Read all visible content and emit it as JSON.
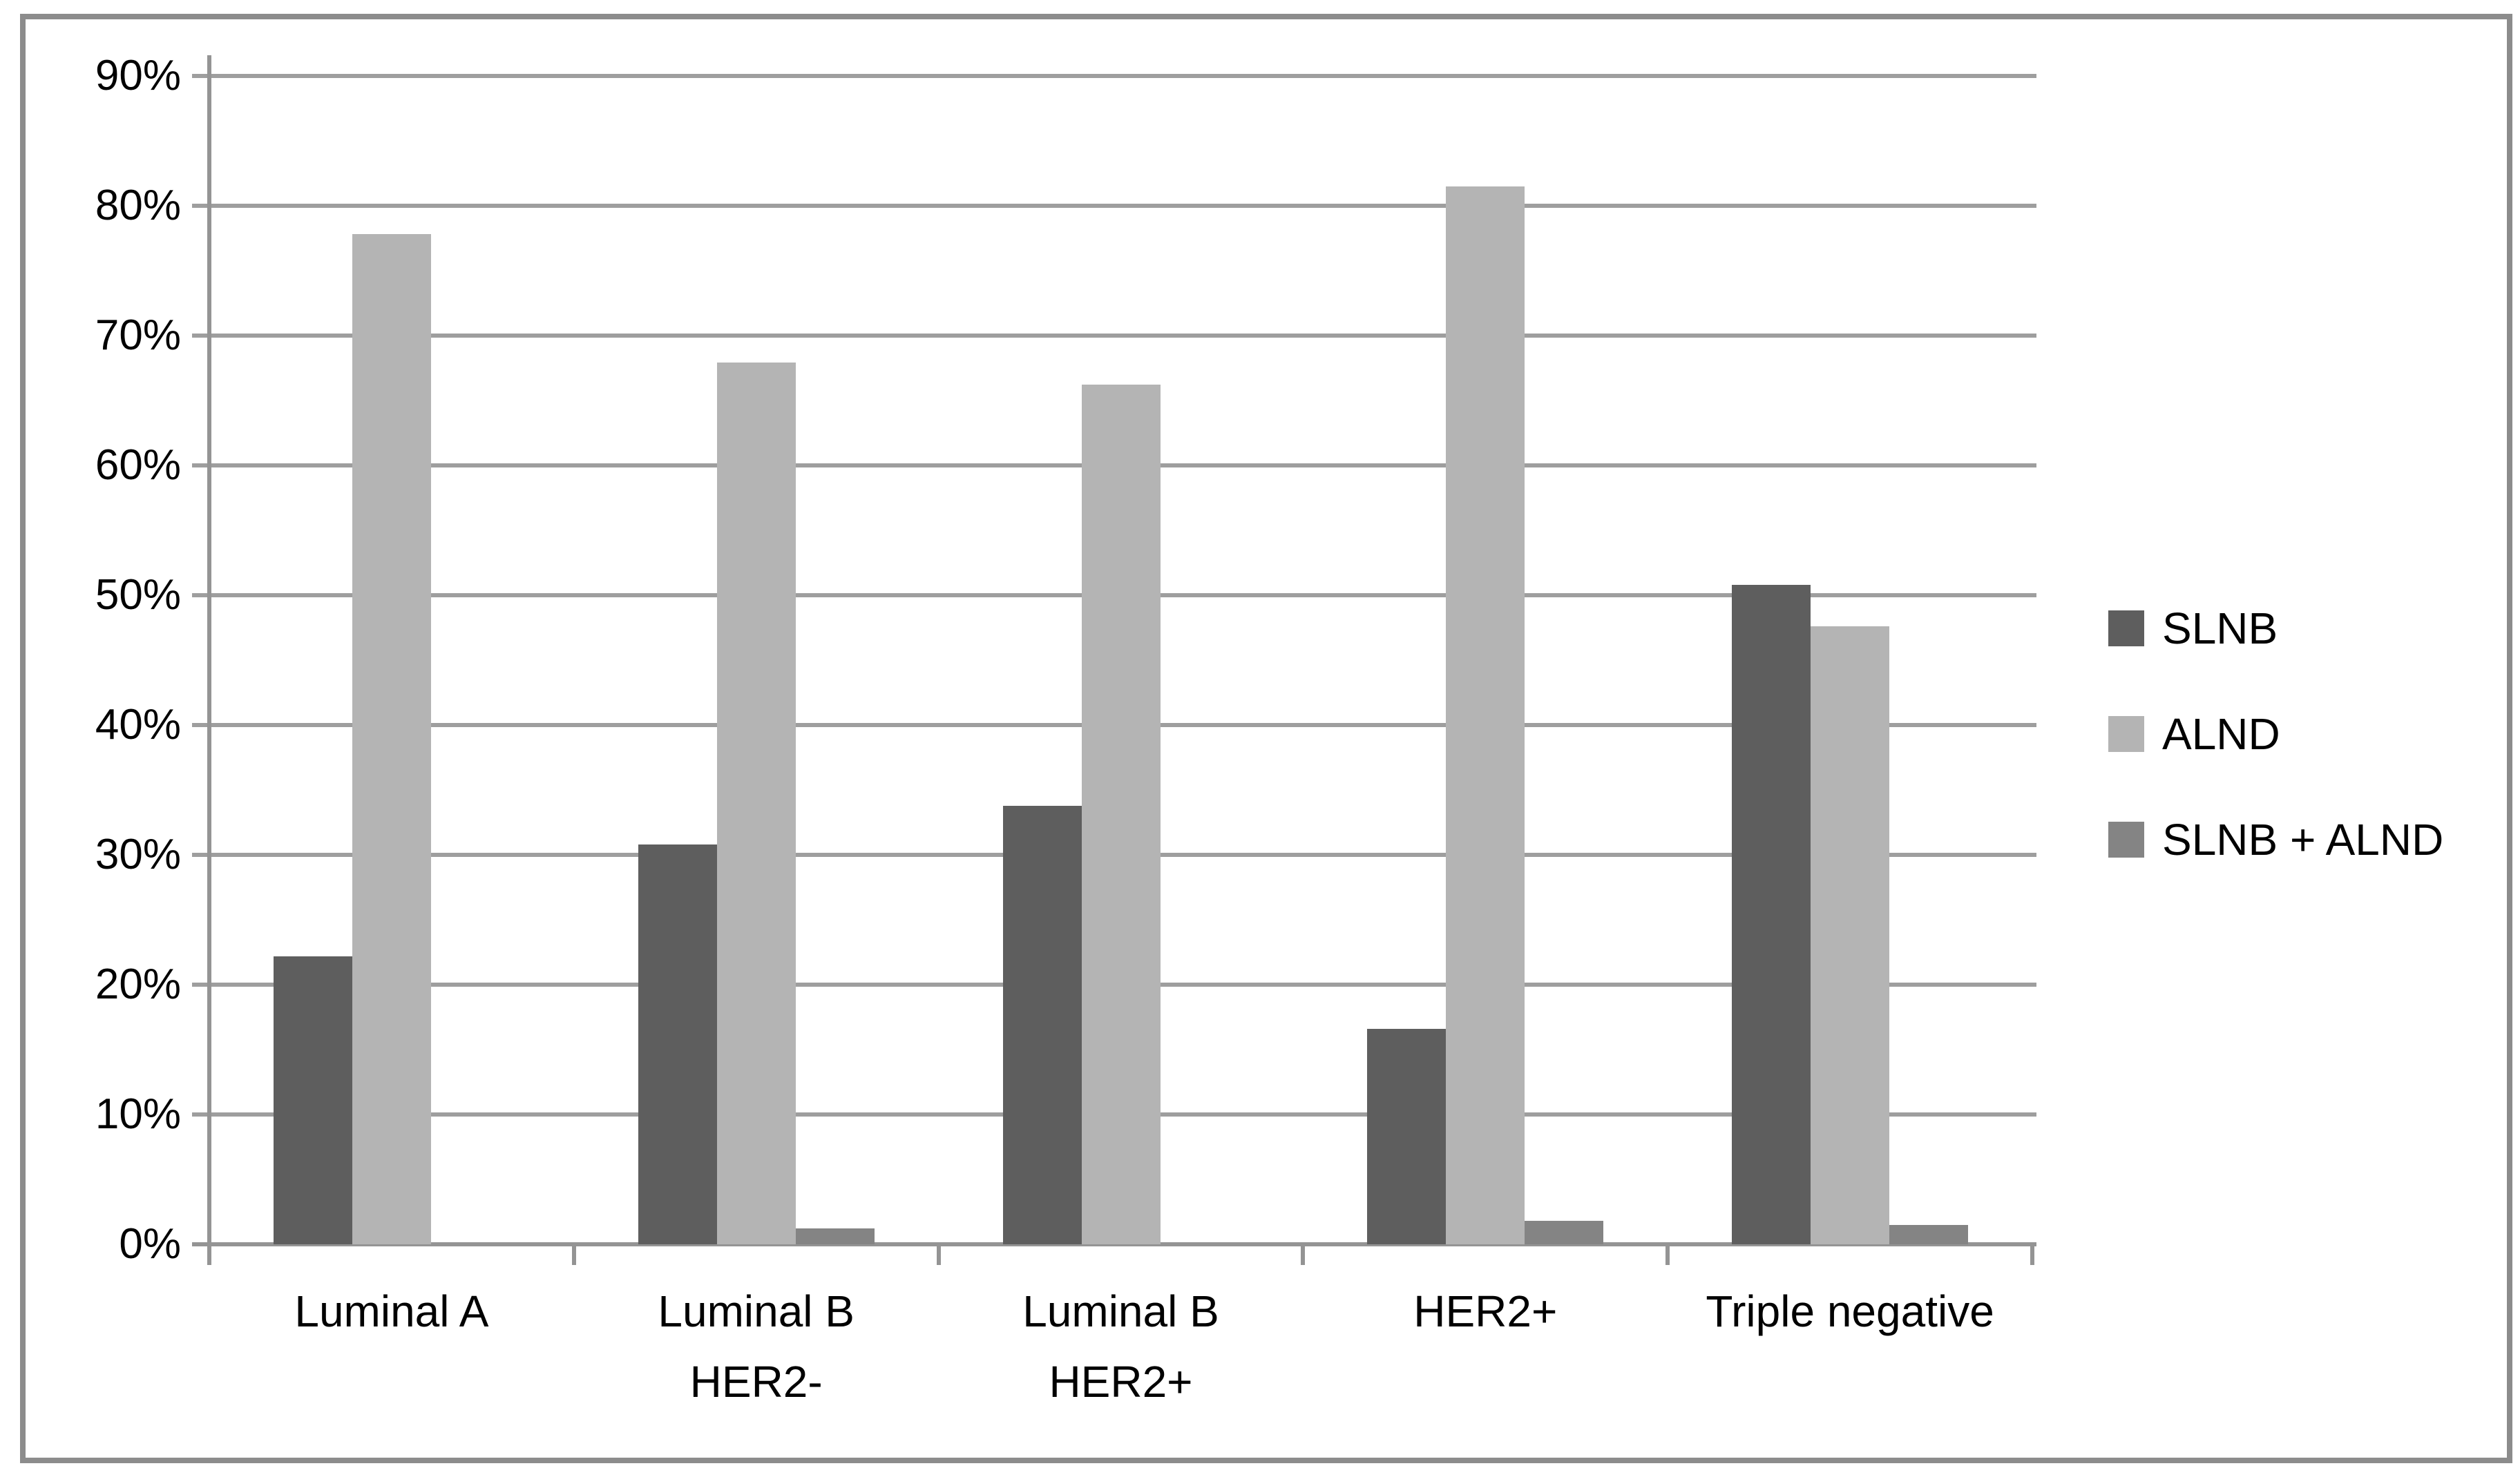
{
  "figure": {
    "background_color": "#ffffff",
    "border_color": "#8c8c8c"
  },
  "chart_data": {
    "type": "bar",
    "title": "",
    "xlabel": "",
    "ylabel": "",
    "categories": [
      "Luminal A",
      "Luminal B HER2-",
      "Luminal B HER2+",
      "HER2+",
      "Triple negative"
    ],
    "category_lines": [
      [
        "Luminal A"
      ],
      [
        "Luminal B",
        "HER2-"
      ],
      [
        "Luminal B",
        "HER2+"
      ],
      [
        "HER2+"
      ],
      [
        "Triple negative"
      ]
    ],
    "series": [
      {
        "name": "SLNB",
        "color": "#5e5e5e",
        "values": [
          22.2,
          30.8,
          33.8,
          16.6,
          50.8
        ]
      },
      {
        "name": "ALND",
        "color": "#b4b4b4",
        "values": [
          77.8,
          67.9,
          66.2,
          81.5,
          47.6
        ]
      },
      {
        "name": "SLNB + ALND",
        "color": "#848484",
        "values": [
          0,
          1.2,
          0,
          1.8,
          1.5
        ]
      }
    ],
    "ylim": [
      0,
      90
    ],
    "ytick_step": 10,
    "ytick_labels": [
      "0%",
      "10%",
      "20%",
      "30%",
      "40%",
      "50%",
      "60%",
      "70%",
      "80%",
      "90%"
    ],
    "grid": true,
    "gridline_color": "#9e9e9e",
    "axis_color": "#949494",
    "text_color": "#000000",
    "legend_position": "right",
    "legend_labels": [
      "SLNB",
      "ALND",
      "SLNB + ALND"
    ]
  }
}
